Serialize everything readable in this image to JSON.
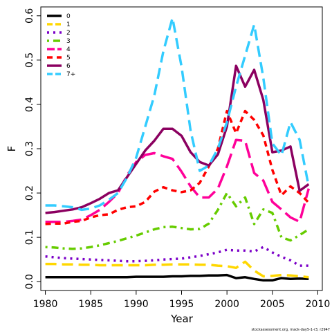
{
  "chart_data": {
    "type": "line",
    "title": "",
    "xlabel": "Year",
    "ylabel": "F",
    "xlim": [
      1979.5,
      2010.5
    ],
    "ylim": [
      -0.02,
      0.62
    ],
    "x_ticks": [
      1980,
      1985,
      1990,
      1995,
      2000,
      2005,
      2010
    ],
    "y_ticks": [
      0.0,
      0.1,
      0.2,
      0.3,
      0.4,
      0.5,
      0.6
    ],
    "y_tick_labels": [
      "0.0",
      "0.1",
      "0.2",
      "0.3",
      "0.4",
      "0.5",
      "0.6"
    ],
    "grid": false,
    "legend_position": "top-left",
    "credit": "stockassessment.org, mack-day5-1-r3, r2947",
    "x": [
      1980,
      1981,
      1982,
      1983,
      1984,
      1985,
      1986,
      1987,
      1988,
      1989,
      1990,
      1991,
      1992,
      1993,
      1994,
      1995,
      1996,
      1997,
      1998,
      1999,
      2000,
      2001,
      2002,
      2003,
      2004,
      2005,
      2006,
      2007,
      2008,
      2009
    ],
    "series": [
      {
        "name": "0",
        "color": "#000000",
        "dash": "solid",
        "values": [
          0.01,
          0.01,
          0.01,
          0.01,
          0.01,
          0.01,
          0.01,
          0.01,
          0.01,
          0.01,
          0.011,
          0.011,
          0.011,
          0.011,
          0.012,
          0.012,
          0.013,
          0.013,
          0.014,
          0.014,
          0.015,
          0.008,
          0.01,
          0.006,
          0.003,
          0.003,
          0.008,
          0.006,
          0.007,
          0.006
        ]
      },
      {
        "name": "1",
        "color": "#FFD700",
        "dash": "long",
        "values": [
          0.04,
          0.04,
          0.039,
          0.039,
          0.038,
          0.038,
          0.037,
          0.037,
          0.037,
          0.037,
          0.037,
          0.037,
          0.038,
          0.038,
          0.039,
          0.039,
          0.039,
          0.038,
          0.038,
          0.036,
          0.035,
          0.031,
          0.045,
          0.025,
          0.012,
          0.013,
          0.015,
          0.014,
          0.012,
          0.01
        ]
      },
      {
        "name": "2",
        "color": "#7B00C8",
        "dash": "dot",
        "values": [
          0.057,
          0.055,
          0.053,
          0.052,
          0.051,
          0.05,
          0.049,
          0.048,
          0.047,
          0.046,
          0.046,
          0.047,
          0.048,
          0.05,
          0.051,
          0.052,
          0.055,
          0.058,
          0.062,
          0.066,
          0.072,
          0.07,
          0.07,
          0.068,
          0.078,
          0.066,
          0.056,
          0.048,
          0.036,
          0.036
        ]
      },
      {
        "name": "3",
        "color": "#66CC00",
        "dash": "dotdash",
        "values": [
          0.078,
          0.077,
          0.075,
          0.074,
          0.075,
          0.078,
          0.082,
          0.087,
          0.092,
          0.098,
          0.104,
          0.111,
          0.118,
          0.123,
          0.124,
          0.121,
          0.118,
          0.119,
          0.131,
          0.162,
          0.2,
          0.17,
          0.19,
          0.13,
          0.163,
          0.155,
          0.1,
          0.093,
          0.105,
          0.118
        ]
      },
      {
        "name": "4",
        "color": "#FF0099",
        "dash": "longdash",
        "values": [
          0.135,
          0.135,
          0.135,
          0.137,
          0.14,
          0.15,
          0.162,
          0.18,
          0.2,
          0.24,
          0.27,
          0.286,
          0.29,
          0.283,
          0.277,
          0.248,
          0.215,
          0.19,
          0.19,
          0.21,
          0.26,
          0.32,
          0.318,
          0.245,
          0.228,
          0.18,
          0.163,
          0.145,
          0.135,
          0.21
        ]
      },
      {
        "name": "5",
        "color": "#FF0000",
        "dash": "dash",
        "values": [
          0.13,
          0.131,
          0.131,
          0.135,
          0.137,
          0.145,
          0.15,
          0.152,
          0.162,
          0.168,
          0.17,
          0.18,
          0.203,
          0.213,
          0.206,
          0.202,
          0.206,
          0.223,
          0.26,
          0.3,
          0.385,
          0.335,
          0.385,
          0.365,
          0.33,
          0.252,
          0.195,
          0.215,
          0.2,
          0.178
        ]
      },
      {
        "name": "6",
        "color": "#8B0060",
        "dash": "solid",
        "values": [
          0.155,
          0.157,
          0.16,
          0.163,
          0.168,
          0.177,
          0.187,
          0.2,
          0.206,
          0.236,
          0.266,
          0.296,
          0.318,
          0.345,
          0.345,
          0.329,
          0.292,
          0.27,
          0.262,
          0.287,
          0.35,
          0.487,
          0.44,
          0.478,
          0.41,
          0.292,
          0.296,
          0.305,
          0.205,
          0.22
        ]
      },
      {
        "name": "7+",
        "color": "#33CCFF",
        "dash": "long",
        "values": [
          0.172,
          0.172,
          0.17,
          0.168,
          0.162,
          0.165,
          0.172,
          0.185,
          0.2,
          0.235,
          0.28,
          0.35,
          0.42,
          0.52,
          0.595,
          0.485,
          0.34,
          0.25,
          0.262,
          0.3,
          0.36,
          0.44,
          0.51,
          0.58,
          0.46,
          0.312,
          0.285,
          0.36,
          0.32,
          0.215
        ]
      }
    ]
  }
}
